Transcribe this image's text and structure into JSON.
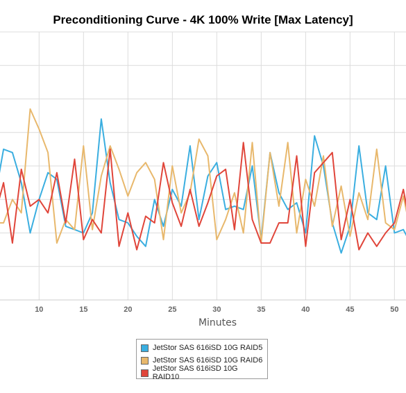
{
  "chart_data": {
    "type": "line",
    "title": "Preconditioning Curve - 4K 100% Write [Max Latency]",
    "xlabel": "Minutes",
    "ylabel": "",
    "xlim": [
      5.6,
      51.3
    ],
    "ylim": [
      0,
      8
    ],
    "x_ticks": [
      10,
      15,
      20,
      25,
      30,
      35,
      40,
      45,
      50
    ],
    "grid": true,
    "legend_position": "bottom",
    "x": [
      5,
      6,
      7,
      8,
      9,
      10,
      11,
      12,
      13,
      14,
      15,
      16,
      17,
      18,
      19,
      20,
      21,
      22,
      23,
      24,
      25,
      26,
      27,
      28,
      29,
      30,
      31,
      32,
      33,
      34,
      35,
      36,
      37,
      38,
      39,
      40,
      41,
      42,
      43,
      44,
      45,
      46,
      47,
      48,
      49,
      50,
      51,
      52
    ],
    "series": [
      {
        "name": "JetStor SAS 616iSD 10G RAID5",
        "color": "#3aaee0",
        "values": [
          3.0,
          4.5,
          4.4,
          3.5,
          2.0,
          3.0,
          3.8,
          3.6,
          2.2,
          2.1,
          2.0,
          2.6,
          5.4,
          3.5,
          2.4,
          2.3,
          1.9,
          1.6,
          3.0,
          2.2,
          3.3,
          2.8,
          4.6,
          2.4,
          3.7,
          4.1,
          2.7,
          2.8,
          2.7,
          4.0,
          1.8,
          4.4,
          3.2,
          2.7,
          2.9,
          2.0,
          4.9,
          4.0,
          2.3,
          1.4,
          2.2,
          4.6,
          2.6,
          2.4,
          4.0,
          2.0,
          2.1,
          1.6
        ]
      },
      {
        "name": "JetStor SAS 616iSD 10G RAID6",
        "color": "#e8b86c",
        "values": [
          2.3,
          2.3,
          3.0,
          2.6,
          5.7,
          5.1,
          4.4,
          1.7,
          2.4,
          2.1,
          4.6,
          2.1,
          3.7,
          4.6,
          3.9,
          3.1,
          3.8,
          4.1,
          3.6,
          1.8,
          4.0,
          2.6,
          3.2,
          4.8,
          4.3,
          1.8,
          2.4,
          3.2,
          2.0,
          4.7,
          1.7,
          4.4,
          2.8,
          4.7,
          2.0,
          3.6,
          2.8,
          4.3,
          2.2,
          3.4,
          1.9,
          3.2,
          2.4,
          4.5,
          2.3,
          2.1,
          3.1,
          1.8
        ]
      },
      {
        "name": "JetStor SAS 616iSD 10G RAID10",
        "color": "#e0453a",
        "values": [
          2.5,
          3.5,
          1.7,
          3.9,
          2.8,
          3.0,
          2.6,
          3.8,
          2.3,
          4.2,
          1.8,
          2.4,
          2.0,
          4.5,
          1.6,
          2.6,
          1.5,
          2.5,
          2.3,
          4.1,
          2.9,
          2.2,
          3.3,
          2.2,
          2.9,
          3.7,
          3.9,
          2.1,
          4.7,
          2.4,
          1.7,
          1.7,
          2.3,
          2.3,
          4.3,
          1.6,
          3.8,
          4.1,
          4.4,
          1.8,
          3.0,
          1.5,
          2.0,
          1.6,
          2.0,
          2.3,
          3.3,
          1.9
        ]
      }
    ]
  }
}
